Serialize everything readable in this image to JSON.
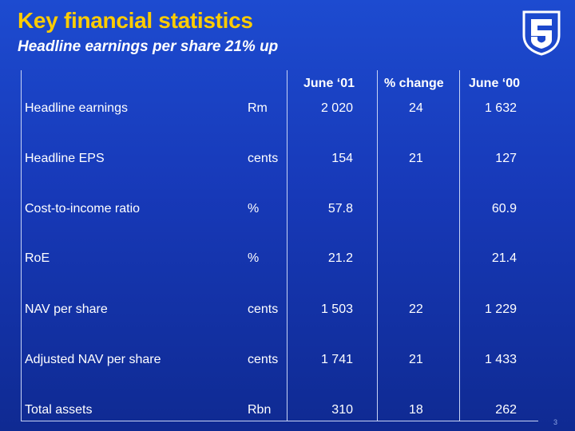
{
  "header": {
    "title": "Key financial statistics",
    "subtitle": "Headline earnings per share 21% up",
    "logo_icon": "bank-shield-logo"
  },
  "table": {
    "columns": [
      "June ‘01",
      "% change",
      "June ‘00"
    ],
    "rows": [
      {
        "label": "Headline earnings",
        "unit": "Rm",
        "june_01": "2 020",
        "change": "24",
        "june_00": "1 632"
      },
      {
        "label": "Headline EPS",
        "unit": "cents",
        "june_01": "154",
        "change": "21",
        "june_00": "127"
      },
      {
        "label": "Cost-to-income ratio",
        "unit": "%",
        "june_01": "57.8",
        "change": "",
        "june_00": "60.9"
      },
      {
        "label": "RoE",
        "unit": "%",
        "june_01": "21.2",
        "change": "",
        "june_00": "21.4"
      },
      {
        "label": "NAV per share",
        "unit": "cents",
        "june_01": "1 503",
        "change": "22",
        "june_00": "1 229"
      },
      {
        "label": "Adjusted NAV per share",
        "unit": "cents",
        "june_01": "1 741",
        "change": "21",
        "june_00": "1 433"
      },
      {
        "label": "Total assets",
        "unit": "Rbn",
        "june_01": "310",
        "change": "18",
        "june_00": "262"
      }
    ]
  },
  "footer": {
    "page_number": "3"
  },
  "colors": {
    "title": "#ffcc00",
    "background_top": "#1d4bd0",
    "background_bottom": "#0f2a92",
    "text": "#ffffff"
  }
}
